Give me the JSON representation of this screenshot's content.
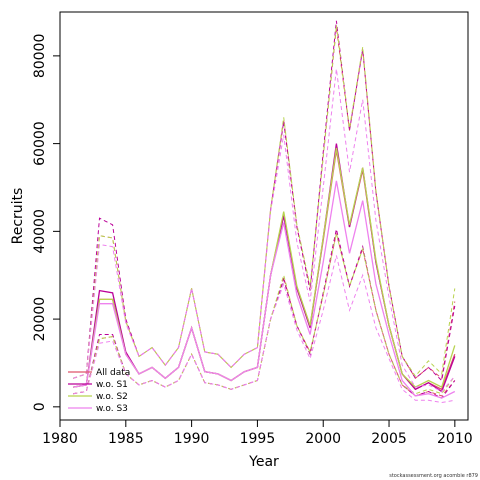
{
  "chart_data": {
    "type": "line",
    "xlabel": "Year",
    "ylabel": "Recruits",
    "xlim": [
      1980,
      2011
    ],
    "ylim": [
      -3000,
      90000
    ],
    "xticks": [
      1980,
      1985,
      1990,
      1995,
      2000,
      2005,
      2010
    ],
    "yticks": [
      0,
      20000,
      40000,
      60000,
      80000
    ],
    "x": [
      1981,
      1982,
      1983,
      1984,
      1985,
      1986,
      1987,
      1988,
      1989,
      1990,
      1991,
      1992,
      1993,
      1994,
      1995,
      1996,
      1997,
      1998,
      1999,
      2000,
      2001,
      2002,
      2003,
      2004,
      2005,
      2006,
      2007,
      2008,
      2009,
      2010
    ],
    "series": [
      {
        "name": "All data",
        "color": "#df536b",
        "lty": "solid",
        "values": [
          4500,
          5000,
          24500,
          24500,
          12000,
          7500,
          9000,
          6500,
          9000,
          18000,
          8000,
          7500,
          6000,
          8000,
          9000,
          30000,
          44000,
          27000,
          18500,
          38000,
          58500,
          41000,
          54000,
          33000,
          18500,
          7500,
          4000,
          5500,
          4000,
          12000
        ],
        "lower": [
          3000,
          3500,
          15500,
          16000,
          7500,
          5000,
          6000,
          4500,
          6000,
          12000,
          5500,
          5000,
          4000,
          5000,
          6000,
          20000,
          29500,
          18500,
          12500,
          25500,
          39500,
          27500,
          36000,
          22000,
          12000,
          5000,
          2500,
          3500,
          2500,
          6000
        ],
        "upper": [
          6500,
          7500,
          39000,
          38500,
          19500,
          11500,
          13500,
          9500,
          13500,
          27000,
          12500,
          12000,
          9000,
          12000,
          13500,
          45000,
          65500,
          41000,
          27000,
          57000,
          86500,
          63000,
          81500,
          49000,
          27500,
          11500,
          6500,
          9000,
          6500,
          24000
        ]
      },
      {
        "name": "w.o. S1",
        "color": "#bb0099",
        "lty": "solid",
        "values": [
          4500,
          5000,
          26500,
          26000,
          12500,
          7500,
          9000,
          6500,
          9000,
          18000,
          8000,
          7500,
          6000,
          8000,
          9000,
          30000,
          43500,
          27000,
          18000,
          38500,
          60000,
          41000,
          54500,
          33000,
          18500,
          7500,
          4000,
          5500,
          3500,
          11500
        ],
        "lower": [
          3000,
          3500,
          16500,
          16500,
          7500,
          5000,
          6000,
          4500,
          6000,
          12000,
          5500,
          5000,
          4000,
          5000,
          6000,
          20000,
          29000,
          18500,
          12000,
          26000,
          40500,
          27500,
          36500,
          22000,
          12000,
          5000,
          2500,
          3500,
          2000,
          6000
        ],
        "upper": [
          6500,
          7500,
          43000,
          41500,
          20000,
          11500,
          13500,
          9500,
          13500,
          27000,
          12500,
          12000,
          9000,
          12000,
          13500,
          45000,
          65000,
          41000,
          26500,
          58000,
          88000,
          63000,
          81500,
          49000,
          27500,
          11500,
          6500,
          9000,
          6000,
          23000
        ]
      },
      {
        "name": "w.o. S2",
        "color": "#b8d34f",
        "lty": "solid",
        "values": [
          4500,
          5000,
          24500,
          24500,
          12000,
          7500,
          9000,
          6500,
          9000,
          18000,
          8000,
          7500,
          6000,
          8000,
          9000,
          30000,
          44500,
          27500,
          18500,
          38500,
          59000,
          41500,
          54500,
          33500,
          18500,
          7500,
          4500,
          6000,
          4500,
          14000
        ],
        "lower": [
          3000,
          3500,
          15500,
          16000,
          7500,
          5000,
          6000,
          4500,
          6000,
          12000,
          5500,
          5000,
          4000,
          5000,
          6000,
          20000,
          30000,
          18500,
          12500,
          25500,
          39500,
          27500,
          36000,
          22000,
          12000,
          5000,
          3000,
          4000,
          3000,
          7000
        ],
        "upper": [
          6500,
          7500,
          39000,
          38500,
          19500,
          11500,
          13500,
          9500,
          13500,
          27000,
          12500,
          12000,
          9000,
          12000,
          13500,
          45000,
          66000,
          41500,
          27500,
          57000,
          87000,
          63500,
          82000,
          49500,
          27500,
          11500,
          7000,
          10500,
          7500,
          27000
        ]
      },
      {
        "name": "w.o. S3",
        "color": "#ee82ee",
        "lty": "solid",
        "values": [
          4500,
          5000,
          23500,
          23500,
          12000,
          7500,
          9000,
          6500,
          9000,
          18000,
          8000,
          7500,
          6000,
          8000,
          9000,
          30000,
          42000,
          25500,
          16500,
          33000,
          51500,
          35000,
          47000,
          28000,
          16500,
          6000,
          2500,
          3000,
          2000,
          3500
        ],
        "lower": [
          3000,
          3500,
          14500,
          15000,
          7500,
          5000,
          6000,
          4500,
          6000,
          12000,
          5500,
          5000,
          4000,
          5000,
          6000,
          20000,
          28000,
          17500,
          11000,
          22000,
          34500,
          22000,
          30000,
          18000,
          11000,
          4000,
          1500,
          1500,
          1000,
          1500
        ],
        "upper": [
          6500,
          7500,
          37000,
          36500,
          19000,
          11500,
          13500,
          9500,
          13500,
          27000,
          12500,
          12000,
          9000,
          12000,
          13500,
          44500,
          62000,
          37500,
          24000,
          50000,
          77000,
          53500,
          70000,
          42500,
          25000,
          9500,
          4500,
          5000,
          3500,
          7000
        ]
      }
    ],
    "legend": {
      "position": "bottom-left",
      "entries": [
        {
          "label": "All data",
          "color": "#df536b"
        },
        {
          "label": "w.o. S1",
          "color": "#bb0099"
        },
        {
          "label": "w.o. S2",
          "color": "#b8d34f"
        },
        {
          "label": "w.o. S3",
          "color": "#ee82ee"
        }
      ]
    },
    "grid": false
  },
  "watermark": "stockassessment.org acombie r879"
}
